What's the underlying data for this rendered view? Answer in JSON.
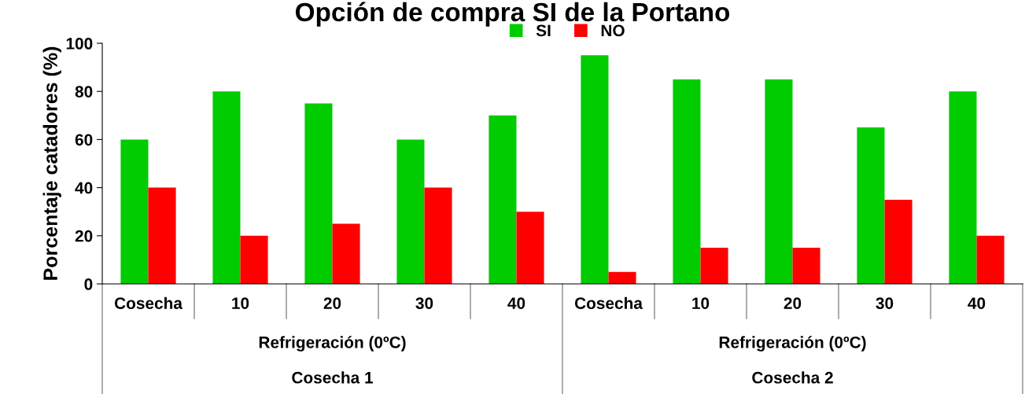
{
  "chart_data": {
    "type": "bar",
    "title": "Opción de compra SI de la Portano",
    "ylabel": "Porcentaje catadores (%)",
    "categories": [
      "Cosecha",
      "10",
      "20",
      "30",
      "40",
      "Cosecha",
      "10",
      "20",
      "30",
      "40"
    ],
    "series": [
      {
        "name": "SI",
        "color": "#00cc00",
        "values": [
          60,
          80,
          75,
          60,
          70,
          95,
          85,
          85,
          65,
          80
        ]
      },
      {
        "name": "NO",
        "color": "#ff0000",
        "values": [
          40,
          20,
          25,
          40,
          30,
          5,
          15,
          15,
          35,
          20
        ]
      }
    ],
    "annotations": [
      "Refrigeración (0ºC)",
      "Refrigeración (0ºC)",
      "Cosecha 1",
      "Cosecha 2"
    ],
    "ylim": [
      0,
      100
    ],
    "yticks": [
      0,
      20,
      40,
      60,
      80,
      100
    ],
    "grid": false,
    "legend": "top"
  }
}
